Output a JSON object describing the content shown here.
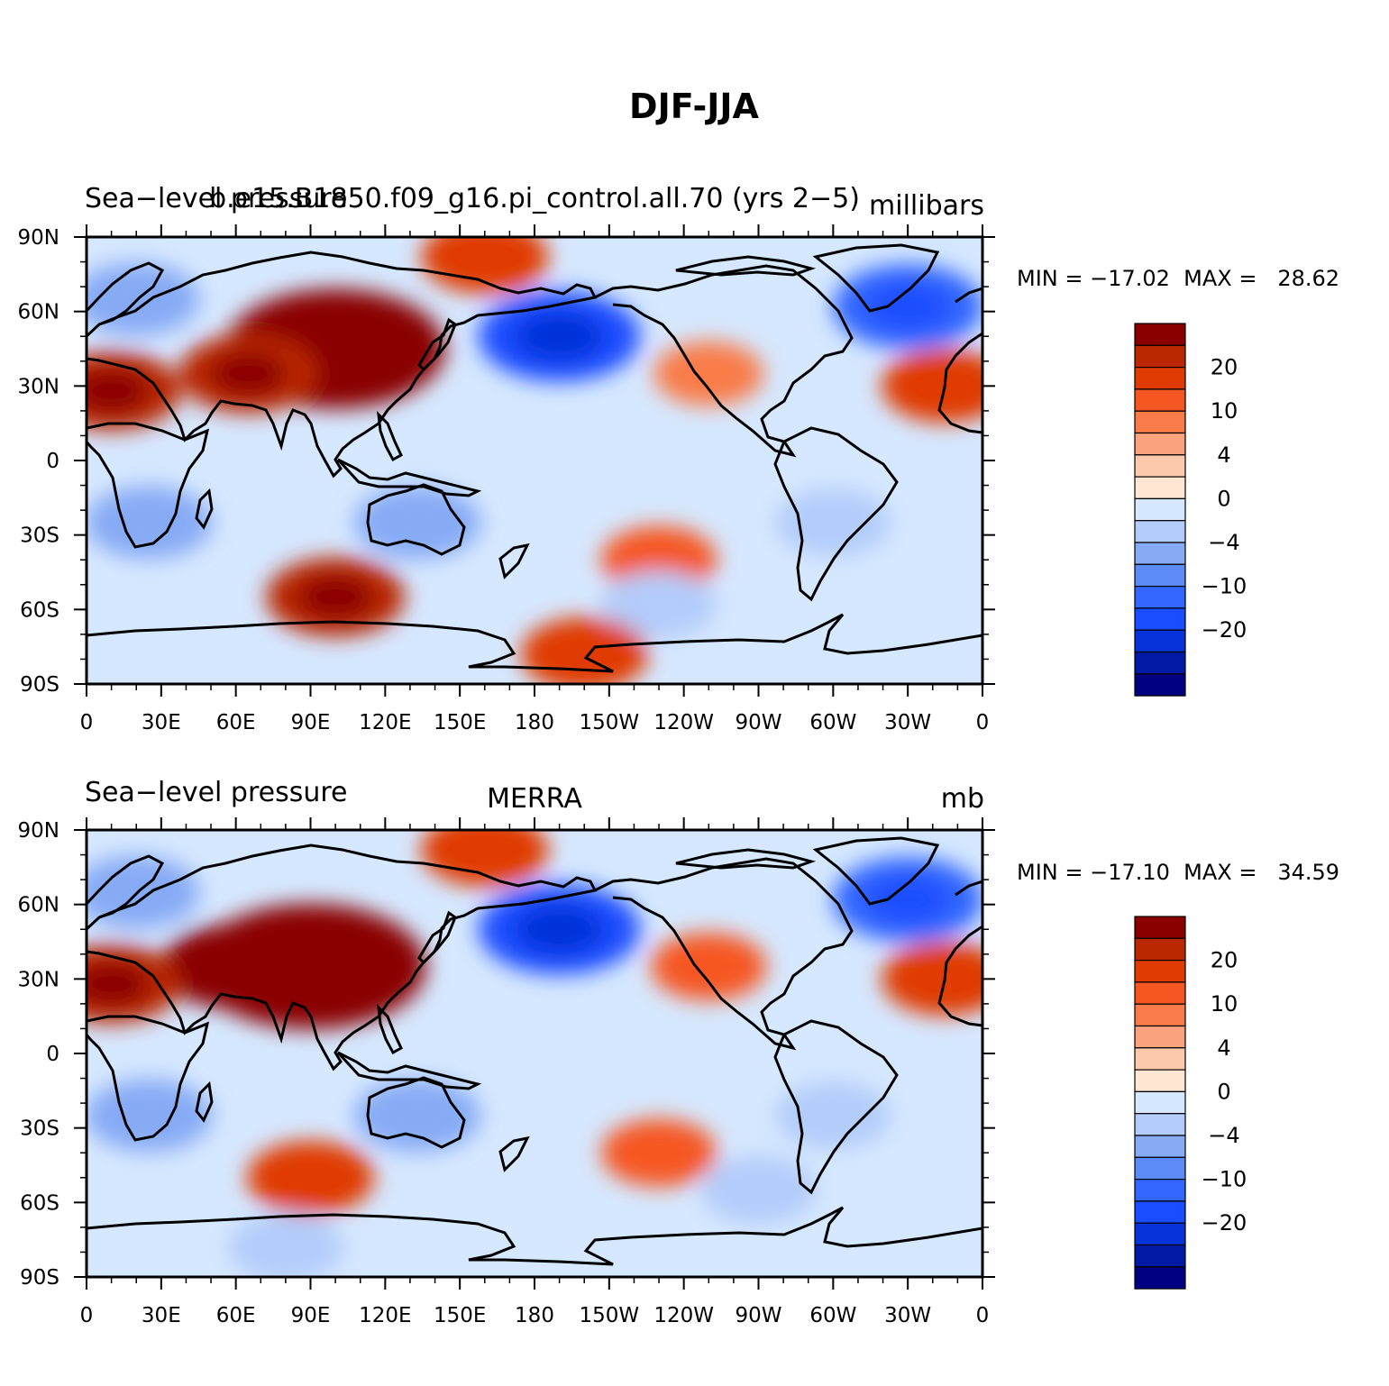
{
  "title": "DJF-JJA",
  "x_ticks": [
    "0",
    "30E",
    "60E",
    "90E",
    "120E",
    "150E",
    "180",
    "150W",
    "120W",
    "90W",
    "60W",
    "30W",
    "0"
  ],
  "y_ticks": [
    "90N",
    "60N",
    "30N",
    "0",
    "30S",
    "60S",
    "90S"
  ],
  "colorbar_labels": [
    "20",
    "10",
    "4",
    "0",
    "−4",
    "−10",
    "−20"
  ],
  "colors": {
    "levels": [
      "#000080",
      "#001aa6",
      "#0533d9",
      "#1a4dff",
      "#3366ff",
      "#5c8bf7",
      "#87aaf5",
      "#b3ccfa",
      "#d6e8ff",
      "#ffe6d2",
      "#fcc9ac",
      "#fba27f",
      "#f97b4a",
      "#f65622",
      "#e03b00",
      "#b92800",
      "#8a0000"
    ],
    "coast": "#000000"
  },
  "panels": [
    {
      "left_label": "Sea−level pressure",
      "center_label": "b.e15.B1850.f09_g16.pi_control.all.70 (yrs 2−5)",
      "right_label": "millibars",
      "stats": "MIN = −17.02  MAX =   28.62"
    },
    {
      "left_label": "Sea−level pressure",
      "center_label": "MERRA",
      "right_label": "mb",
      "stats": "MIN = −17.10  MAX =   34.59"
    }
  ],
  "chart_data": {
    "type": "heatmap",
    "variable": "Sea-level pressure",
    "season_difference": "DJF-JJA",
    "contour_levels": [
      -24,
      -20,
      -16,
      -12,
      -10,
      -8,
      -6,
      -4,
      -2,
      0,
      2,
      4,
      6,
      8,
      10,
      12,
      16,
      20,
      24
    ],
    "colorbar_tick_values": [
      20,
      10,
      4,
      0,
      -4,
      -10,
      -20
    ],
    "lon_range": [
      0,
      360
    ],
    "lat_range": [
      -90,
      90
    ],
    "grid": false,
    "panels": [
      {
        "name": "b.e15.B1850.f09_g16.pi_control.all.70 (yrs 2−5)",
        "units": "millibars",
        "min": -17.02,
        "max": 28.62,
        "features": [
          {
            "lon": 100,
            "lat": 45,
            "value": 24
          },
          {
            "lon": 65,
            "lat": 35,
            "value": 10
          },
          {
            "lon": 10,
            "lat": 28,
            "value": 10
          },
          {
            "lon": 160,
            "lat": 82,
            "value": 8
          },
          {
            "lon": 190,
            "lat": 50,
            "value": -14
          },
          {
            "lon": 330,
            "lat": 62,
            "value": -12
          },
          {
            "lon": 20,
            "lat": 65,
            "value": -8
          },
          {
            "lon": 25,
            "lat": -25,
            "value": -8
          },
          {
            "lon": 133,
            "lat": -25,
            "value": -8
          },
          {
            "lon": 300,
            "lat": -25,
            "value": -6
          },
          {
            "lon": 100,
            "lat": -55,
            "value": 10
          },
          {
            "lon": 230,
            "lat": -40,
            "value": 6
          },
          {
            "lon": 230,
            "lat": -58,
            "value": -6
          },
          {
            "lon": 250,
            "lat": 35,
            "value": 5
          },
          {
            "lon": 345,
            "lat": 30,
            "value": 8
          },
          {
            "lon": 200,
            "lat": -78,
            "value": 8
          }
        ]
      },
      {
        "name": "MERRA",
        "units": "mb",
        "min": -17.1,
        "max": 34.59,
        "features": [
          {
            "lon": 90,
            "lat": 35,
            "value": 26
          },
          {
            "lon": 60,
            "lat": 35,
            "value": 12
          },
          {
            "lon": 10,
            "lat": 28,
            "value": 10
          },
          {
            "lon": 160,
            "lat": 82,
            "value": 8
          },
          {
            "lon": 190,
            "lat": 50,
            "value": -14
          },
          {
            "lon": 330,
            "lat": 62,
            "value": -12
          },
          {
            "lon": 20,
            "lat": 65,
            "value": -8
          },
          {
            "lon": 25,
            "lat": -25,
            "value": -8
          },
          {
            "lon": 133,
            "lat": -25,
            "value": -8
          },
          {
            "lon": 300,
            "lat": -25,
            "value": -6
          },
          {
            "lon": 90,
            "lat": -50,
            "value": 8
          },
          {
            "lon": 230,
            "lat": -40,
            "value": 6
          },
          {
            "lon": 270,
            "lat": -55,
            "value": -6
          },
          {
            "lon": 250,
            "lat": 35,
            "value": 6
          },
          {
            "lon": 345,
            "lat": 30,
            "value": 8
          },
          {
            "lon": 80,
            "lat": -78,
            "value": -6
          }
        ]
      }
    ]
  }
}
